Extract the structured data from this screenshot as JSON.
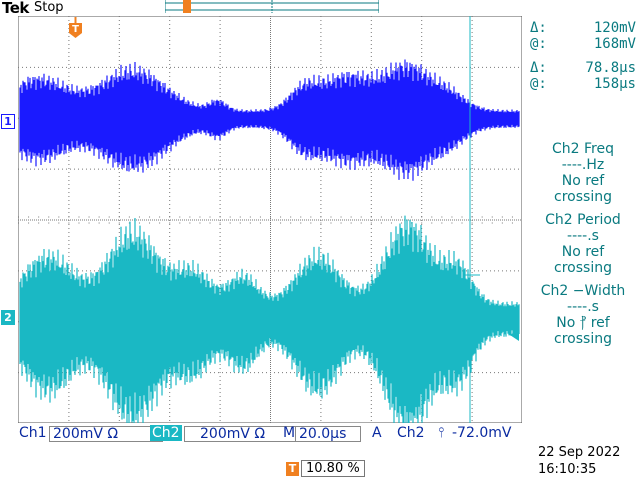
{
  "header": {
    "logo_main": "Tek",
    "acq_state": "Stop"
  },
  "channels": {
    "ch1": {
      "marker": "1",
      "label": "Ch1",
      "scale": "200mV",
      "coupling_symbol": "Ω",
      "color": "#1a1aff"
    },
    "ch2": {
      "marker": "2",
      "label": "Ch2",
      "scale": "200mV",
      "coupling_symbol": "Ω",
      "color": "#1ab8c4"
    }
  },
  "cursors": {
    "voltage": {
      "delta_symbol": "Δ:",
      "delta": "120mV",
      "at_symbol": "@:",
      "at": "168mV"
    },
    "time": {
      "delta_symbol": "Δ:",
      "delta": "78.8µs",
      "at_symbol": "@:",
      "at": "158µs"
    }
  },
  "measurements": [
    {
      "title": "Ch2 Freq",
      "value": "----.Hz",
      "status_1": "No ref",
      "status_2": "crossing"
    },
    {
      "title": "Ch2 Period",
      "value": "----.s",
      "status_1": "No ref",
      "status_2": "crossing"
    },
    {
      "title": "Ch2 −Width",
      "value": "----.s",
      "status_1": "No ⳨ ref",
      "status_2": "crossing"
    }
  ],
  "timebase": {
    "prefix": "M",
    "value": "20.0µs"
  },
  "trigger": {
    "mode": "A",
    "source": "Ch2",
    "slope_symbol": "⫯",
    "level": "-72.0mV",
    "position_symbol": "T",
    "position": "10.80 %"
  },
  "datetime": {
    "date": "22 Sep  2022",
    "time": "16:10:35"
  },
  "icons": {
    "trigger_marker": "trigger-T-icon",
    "trigger_level": "trigger-level-arrow-icon",
    "slope": "rising-edge-icon"
  }
}
